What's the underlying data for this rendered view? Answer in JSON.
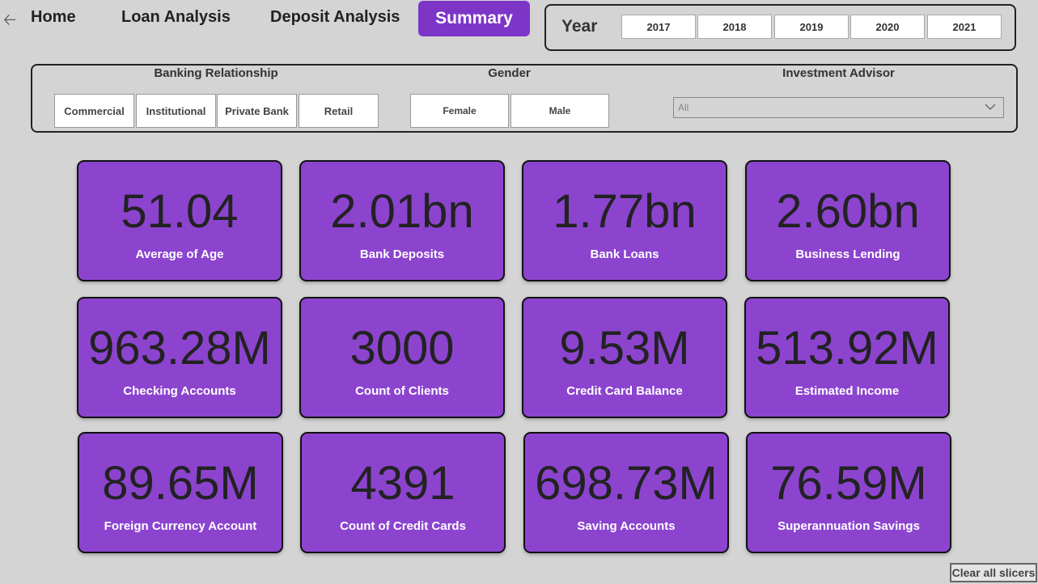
{
  "nav": {
    "home": "Home",
    "loan_analysis": "Loan Analysis",
    "deposit_analysis": "Deposit Analysis",
    "summary": "Summary"
  },
  "year_slicer": {
    "label": "Year",
    "options": [
      "2017",
      "2018",
      "2019",
      "2020",
      "2021"
    ]
  },
  "filters": {
    "banking_relationship": {
      "title": "Banking Relationship",
      "options": [
        "Commercial",
        "Institutional",
        "Private Bank",
        "Retail"
      ]
    },
    "gender": {
      "title": "Gender",
      "options": [
        "Female",
        "Male"
      ]
    },
    "investment_advisor": {
      "title": "Investment Advisor",
      "selected": "All"
    }
  },
  "kpis": [
    {
      "value": "51.04",
      "label": "Average of Age"
    },
    {
      "value": "2.01bn",
      "label": "Bank Deposits"
    },
    {
      "value": "1.77bn",
      "label": "Bank Loans"
    },
    {
      "value": "2.60bn",
      "label": "Business Lending"
    },
    {
      "value": "963.28M",
      "label": "Checking Accounts"
    },
    {
      "value": "3000",
      "label": "Count of Clients"
    },
    {
      "value": "9.53M",
      "label": "Credit Card Balance"
    },
    {
      "value": "513.92M",
      "label": "Estimated Income"
    },
    {
      "value": "89.65M",
      "label": "Foreign Currency Account"
    },
    {
      "value": "4391",
      "label": "Count of Credit Cards"
    },
    {
      "value": "698.73M",
      "label": "Saving Accounts"
    },
    {
      "value": "76.59M",
      "label": "Superannuation Savings"
    }
  ],
  "clear_all": "Clear all slicers",
  "colors": {
    "accent": "#7d35c8",
    "card": "#8c44cf",
    "background": "#d4d4d4"
  }
}
